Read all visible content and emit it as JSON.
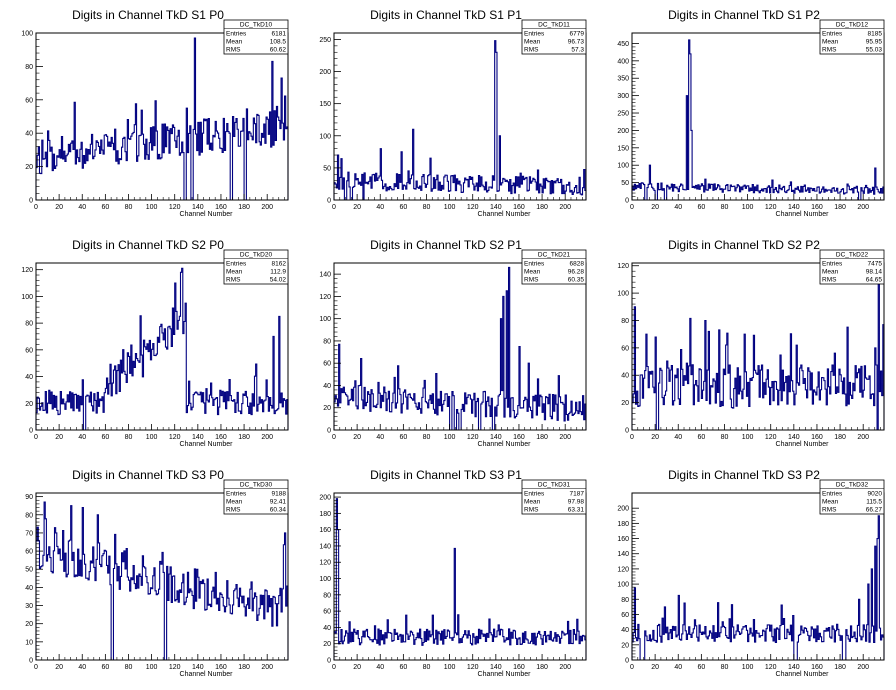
{
  "chart_data": [
    {
      "type": "histogram",
      "title": "Digits in Channel TkD S1 P0",
      "xlabel": "Channel Number",
      "ylabel": "",
      "xlim": [
        0,
        218
      ],
      "ylim": [
        0,
        100
      ],
      "xticks": [
        0,
        20,
        40,
        60,
        80,
        100,
        120,
        140,
        160,
        180,
        200
      ],
      "yticks": [
        0,
        20,
        40,
        60,
        80,
        100
      ],
      "stats": {
        "name": "DC_TkD10",
        "rows": [
          [
            "Entries",
            "6181"
          ],
          [
            "Mean",
            "108.5"
          ],
          [
            "RMS",
            "60.62"
          ]
        ]
      },
      "baseline": 26,
      "ramp": 0.08,
      "noise": 11,
      "spikes": [
        [
          137,
          97
        ],
        [
          204,
          83
        ],
        [
          208,
          56
        ],
        [
          212,
          73
        ],
        [
          130,
          55
        ],
        [
          170,
          50
        ]
      ],
      "zeros": [
        128,
        129,
        134,
        135,
        168,
        169,
        180,
        181
      ],
      "seed": 11
    },
    {
      "type": "histogram",
      "title": "Digits in Channel TkD S1 P1",
      "xlabel": "Channel Number",
      "ylabel": "",
      "xlim": [
        0,
        218
      ],
      "ylim": [
        0,
        260
      ],
      "xticks": [
        0,
        20,
        40,
        60,
        80,
        100,
        120,
        140,
        160,
        180,
        200
      ],
      "yticks": [
        0,
        50,
        100,
        150,
        200,
        250
      ],
      "stats": {
        "name": "DC_TkD11",
        "rows": [
          [
            "Entries",
            "6779"
          ],
          [
            "Mean",
            "96.73"
          ],
          [
            "RMS",
            "57.3"
          ]
        ]
      },
      "baseline": 30,
      "ramp": -0.04,
      "noise": 14,
      "spikes": [
        [
          139,
          248
        ],
        [
          140,
          230
        ],
        [
          143,
          100
        ],
        [
          68,
          110
        ],
        [
          3,
          70
        ],
        [
          40,
          80
        ],
        [
          58,
          75
        ]
      ],
      "zeros": [
        9,
        10,
        14,
        15,
        25
      ],
      "seed": 12
    },
    {
      "type": "histogram",
      "title": "Digits in Channel TkD S1 P2",
      "xlabel": "Channel Number",
      "ylabel": "",
      "xlim": [
        0,
        218
      ],
      "ylim": [
        0,
        480
      ],
      "xticks": [
        0,
        20,
        40,
        60,
        80,
        100,
        120,
        140,
        160,
        180,
        200
      ],
      "yticks": [
        0,
        50,
        100,
        150,
        200,
        250,
        300,
        350,
        400,
        450
      ],
      "stats": {
        "name": "DC_TkD12",
        "rows": [
          [
            "Entries",
            "8185"
          ],
          [
            "Mean",
            "95.95"
          ],
          [
            "RMS",
            "55.03"
          ]
        ]
      },
      "baseline": 38,
      "ramp": -0.05,
      "noise": 12,
      "spikes": [
        [
          49,
          460
        ],
        [
          50,
          420
        ],
        [
          47,
          300
        ],
        [
          51,
          200
        ],
        [
          15,
          100
        ],
        [
          210,
          92
        ]
      ],
      "zeros": [
        11,
        12,
        20,
        21,
        28,
        29,
        196,
        197
      ],
      "seed": 13
    },
    {
      "type": "histogram",
      "title": "Digits in Channel TkD S2 P0",
      "xlabel": "Channel Number",
      "ylabel": "",
      "xlim": [
        0,
        218
      ],
      "ylim": [
        0,
        125
      ],
      "xticks": [
        0,
        20,
        40,
        60,
        80,
        100,
        120,
        140,
        160,
        180,
        200
      ],
      "yticks": [
        0,
        20,
        40,
        60,
        80,
        100,
        120
      ],
      "stats": {
        "name": "DC_TkD20",
        "rows": [
          [
            "Entries",
            "8162"
          ],
          [
            "Mean",
            "112.9"
          ],
          [
            "RMS",
            "54.02"
          ]
        ]
      },
      "baseline": 20,
      "ramp": 0.0,
      "noise": 9,
      "hump": [
        [
          60,
          129,
          30,
          85
        ]
      ],
      "spikes": [
        [
          126,
          121
        ],
        [
          125,
          118
        ],
        [
          120,
          110
        ],
        [
          210,
          85
        ],
        [
          205,
          70
        ]
      ],
      "zeros": [
        41,
        42
      ],
      "seed": 21
    },
    {
      "type": "histogram",
      "title": "Digits in Channel TkD S2 P1",
      "xlabel": "Channel Number",
      "ylabel": "",
      "xlim": [
        0,
        218
      ],
      "ylim": [
        0,
        150
      ],
      "xticks": [
        0,
        20,
        40,
        60,
        80,
        100,
        120,
        140,
        160,
        180,
        200
      ],
      "yticks": [
        0,
        20,
        40,
        60,
        80,
        100,
        120,
        140
      ],
      "stats": {
        "name": "DC_TkD21",
        "rows": [
          [
            "Entries",
            "6828"
          ],
          [
            "Mean",
            "96.28"
          ],
          [
            "RMS",
            "60.35"
          ]
        ]
      },
      "baseline": 30,
      "ramp": -0.05,
      "noise": 12,
      "spikes": [
        [
          151,
          146
        ],
        [
          149,
          125
        ],
        [
          146,
          120
        ],
        [
          144,
          100
        ],
        [
          4,
          77
        ],
        [
          160,
          75
        ],
        [
          168,
          60
        ]
      ],
      "zeros": [
        100,
        101,
        104,
        105,
        108,
        109,
        125,
        126,
        137,
        138
      ],
      "seed": 22
    },
    {
      "type": "histogram",
      "title": "Digits in Channel TkD S2 P2",
      "xlabel": "Channel Number",
      "ylabel": "",
      "xlim": [
        0,
        218
      ],
      "ylim": [
        0,
        122
      ],
      "xticks": [
        0,
        20,
        40,
        60,
        80,
        100,
        120,
        140,
        160,
        180,
        200
      ],
      "yticks": [
        0,
        20,
        40,
        60,
        80,
        100,
        120
      ],
      "stats": {
        "name": "DC_TkD22",
        "rows": [
          [
            "Entries",
            "7475"
          ],
          [
            "Mean",
            "98.14"
          ],
          [
            "RMS",
            "64.65"
          ]
        ]
      },
      "baseline": 32,
      "ramp": 0.0,
      "noise": 16,
      "spikes": [
        [
          213,
          110
        ],
        [
          2,
          90
        ],
        [
          63,
          80
        ],
        [
          66,
          72
        ],
        [
          12,
          70
        ],
        [
          97,
          70
        ],
        [
          210,
          60
        ]
      ],
      "zeros": [
        21,
        22,
        212
      ],
      "seed": 23
    },
    {
      "type": "histogram",
      "title": "Digits in Channel TkD S3 P0",
      "xlabel": "Channel Number",
      "ylabel": "",
      "xlim": [
        0,
        218
      ],
      "ylim": [
        0,
        92
      ],
      "xticks": [
        0,
        20,
        40,
        60,
        80,
        100,
        120,
        140,
        160,
        180,
        200
      ],
      "yticks": [
        0,
        10,
        20,
        30,
        40,
        50,
        60,
        70,
        80,
        90
      ],
      "stats": {
        "name": "DC_TkD30",
        "rows": [
          [
            "Entries",
            "9188"
          ],
          [
            "Mean",
            "92.41"
          ],
          [
            "RMS",
            "60.34"
          ]
        ]
      },
      "baseline": 62,
      "ramp": -0.16,
      "noise": 12,
      "spikes": [
        [
          7,
          87
        ],
        [
          30,
          85
        ],
        [
          40,
          84
        ],
        [
          53,
          80
        ],
        [
          215,
          70
        ]
      ],
      "zeros": [
        65,
        66,
        111,
        112
      ],
      "seed": 31
    },
    {
      "type": "histogram",
      "title": "Digits in Channel TkD S3 P1",
      "xlabel": "Channel Number",
      "ylabel": "",
      "xlim": [
        0,
        218
      ],
      "ylim": [
        0,
        205
      ],
      "xticks": [
        0,
        20,
        40,
        60,
        80,
        100,
        120,
        140,
        160,
        180,
        200
      ],
      "yticks": [
        0,
        20,
        40,
        60,
        80,
        100,
        120,
        140,
        160,
        180,
        200
      ],
      "stats": {
        "name": "DC_TkD31",
        "rows": [
          [
            "Entries",
            "7187"
          ],
          [
            "Mean",
            "97.98"
          ],
          [
            "RMS",
            "63.31"
          ]
        ]
      },
      "baseline": 28,
      "ramp": 0.0,
      "noise": 10,
      "spikes": [
        [
          2,
          198
        ],
        [
          3,
          160
        ],
        [
          104,
          137
        ],
        [
          85,
          55
        ],
        [
          62,
          55
        ],
        [
          210,
          50
        ]
      ],
      "zeros": [],
      "seed": 32
    },
    {
      "type": "histogram",
      "title": "Digits in Channel TkD S3 P2",
      "xlabel": "Channel Number",
      "ylabel": "",
      "xlim": [
        0,
        218
      ],
      "ylim": [
        0,
        220
      ],
      "xticks": [
        0,
        20,
        40,
        60,
        80,
        100,
        120,
        140,
        160,
        180,
        200
      ],
      "yticks": [
        0,
        20,
        40,
        60,
        80,
        100,
        120,
        140,
        160,
        180,
        200
      ],
      "stats": {
        "name": "DC_TkD32",
        "rows": [
          [
            "Entries",
            "9020"
          ],
          [
            "Mean",
            "115.5"
          ],
          [
            "RMS",
            "66.27"
          ]
        ]
      },
      "baseline": 35,
      "ramp": 0.0,
      "noise": 12,
      "spikes": [
        [
          213,
          190
        ],
        [
          212,
          160
        ],
        [
          210,
          150
        ],
        [
          207,
          120
        ],
        [
          204,
          100
        ],
        [
          196,
          80
        ],
        [
          40,
          85
        ],
        [
          45,
          75
        ],
        [
          28,
          70
        ],
        [
          2,
          95
        ]
      ],
      "zeros": [
        7,
        8,
        9,
        10,
        140,
        141,
        142,
        182,
        183,
        184
      ],
      "seed": 33
    }
  ]
}
